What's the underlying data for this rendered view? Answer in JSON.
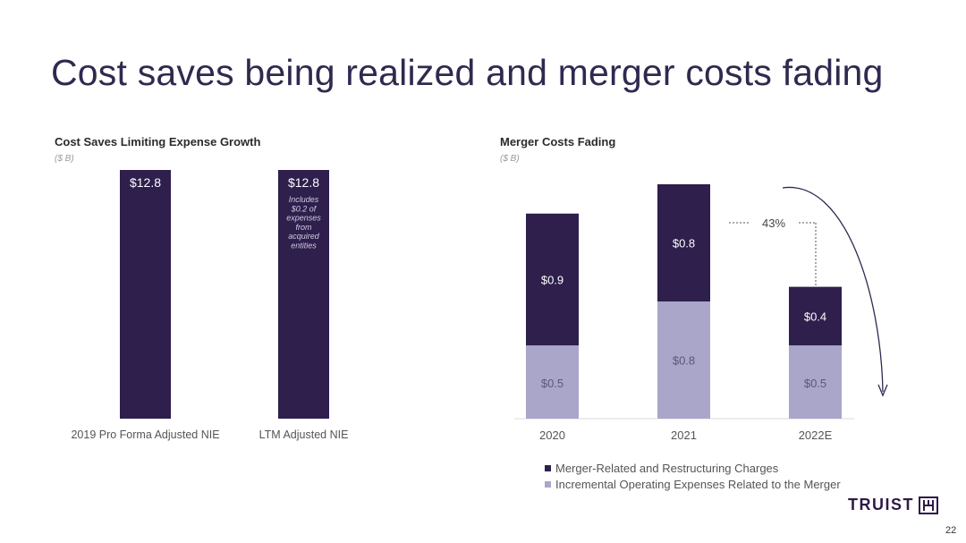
{
  "page": {
    "title": "Cost saves being realized and merger costs fading",
    "page_number": "22",
    "logo_text": "TRUIST"
  },
  "chart_data": [
    {
      "type": "bar",
      "title": "Cost Saves Limiting Expense Growth",
      "unit": "($ B)",
      "categories": [
        "2019 Pro Forma Adjusted NIE",
        "LTM Adjusted NIE"
      ],
      "values": [
        12.8,
        12.8
      ],
      "data_labels": [
        "$12.8",
        "$12.8"
      ],
      "annotations": [
        "Includes",
        "$0.2 of",
        "expenses",
        "from",
        "acquired",
        "entities"
      ],
      "color": "#2e1f4d",
      "ylim": [
        0,
        12.8
      ]
    },
    {
      "type": "bar",
      "stacked": true,
      "title": "Merger Costs Fading",
      "unit": "($ B)",
      "categories": [
        "2020",
        "2021",
        "2022E"
      ],
      "series": [
        {
          "name": "Incremental Operating Expenses Related to the Merger",
          "values": [
            0.5,
            0.8,
            0.5
          ],
          "labels": [
            "$0.5",
            "$0.8",
            "$0.5"
          ],
          "color": "#aaa6c9"
        },
        {
          "name": "Merger-Related and Restructuring Charges",
          "values": [
            0.9,
            0.8,
            0.4
          ],
          "labels": [
            "$0.9",
            "$0.8",
            "$0.4"
          ],
          "color": "#2e1f4d"
        }
      ],
      "legend_order": [
        1,
        0
      ],
      "callout": "43%",
      "legend_position": "bottom"
    }
  ]
}
